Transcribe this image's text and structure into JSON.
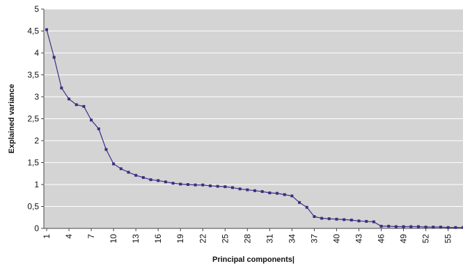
{
  "chart_data": {
    "type": "line",
    "title": "",
    "xlabel": "Principal components|",
    "ylabel": "Explained variance",
    "ylim": [
      0,
      5
    ],
    "xlim": [
      1,
      57
    ],
    "grid": true,
    "y_ticks": [
      "0",
      "0,5",
      "1",
      "1,5",
      "2",
      "2,5",
      "3",
      "3,5",
      "4",
      "4,5",
      "5"
    ],
    "x_ticks": [
      "1",
      "4",
      "7",
      "10",
      "13",
      "16",
      "19",
      "22",
      "25",
      "28",
      "31",
      "34",
      "37",
      "40",
      "43",
      "46",
      "49",
      "52",
      "55"
    ],
    "x_tick_values": [
      1,
      4,
      7,
      10,
      13,
      16,
      19,
      22,
      25,
      28,
      31,
      34,
      37,
      40,
      43,
      46,
      49,
      52,
      55
    ],
    "colors": {
      "line": "#3d2e82",
      "plot_bg": "#d4d4d4",
      "grid": "#ffffff"
    },
    "series": [
      {
        "x": [
          1,
          2,
          3,
          4,
          5,
          6,
          7,
          8,
          9,
          10,
          11,
          12,
          13,
          14,
          15,
          16,
          17,
          18,
          19,
          20,
          21,
          22,
          23,
          24,
          25,
          26,
          27,
          28,
          29,
          30,
          31,
          32,
          33,
          34,
          35,
          36,
          37,
          38,
          39,
          40,
          41,
          42,
          43,
          44,
          45,
          46,
          47,
          48,
          49,
          50,
          51,
          52,
          53,
          54,
          55,
          56,
          57
        ],
        "values": [
          4.53,
          3.9,
          3.2,
          2.95,
          2.82,
          2.78,
          2.47,
          2.27,
          1.8,
          1.47,
          1.36,
          1.28,
          1.21,
          1.16,
          1.11,
          1.09,
          1.06,
          1.03,
          1.01,
          1.0,
          0.99,
          0.99,
          0.97,
          0.96,
          0.95,
          0.93,
          0.9,
          0.88,
          0.86,
          0.84,
          0.81,
          0.8,
          0.77,
          0.74,
          0.59,
          0.48,
          0.27,
          0.23,
          0.22,
          0.21,
          0.2,
          0.19,
          0.17,
          0.16,
          0.15,
          0.05,
          0.05,
          0.04,
          0.04,
          0.04,
          0.04,
          0.03,
          0.03,
          0.03,
          0.02,
          0.02,
          0.02
        ]
      }
    ]
  }
}
